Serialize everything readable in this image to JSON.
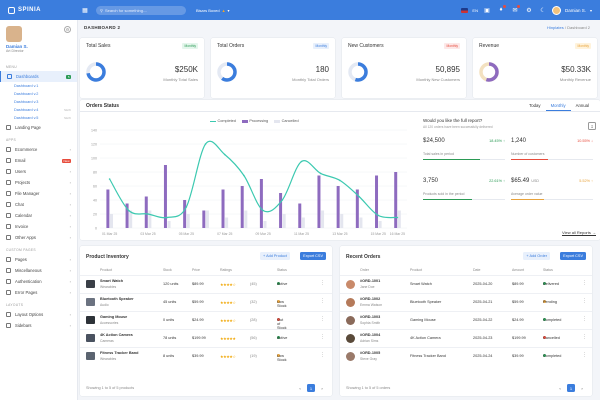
{
  "brand": {
    "name": "SPINIA"
  },
  "topbar": {
    "search_placeholder": "Search for something....",
    "user_dropdown": "Bisars Boxed",
    "lang": "EN",
    "user_name": "Damian S."
  },
  "sidebar": {
    "user": {
      "name": "Damian S.",
      "role": "Art Director"
    },
    "sections": {
      "menu": "MENU",
      "apps": "APPS",
      "custom_pages": "CUSTOM PAGES",
      "layouts": "LAYOUTS"
    },
    "dashboards_label": "Dashboards",
    "dashboards_badge": "5",
    "dashboard_subs": [
      {
        "label": "Dashboard v.1",
        "tag": ""
      },
      {
        "label": "Dashboard v.2",
        "tag": ""
      },
      {
        "label": "Dashboard v.3",
        "tag": ""
      },
      {
        "label": "Dashboard v.4",
        "tag": "NEW"
      },
      {
        "label": "Dashboard v.5",
        "tag": "NEW"
      }
    ],
    "landing": "Landing Page",
    "apps": [
      {
        "label": "Ecommerce",
        "badge": ""
      },
      {
        "label": "Email",
        "badge": "New"
      },
      {
        "label": "Users",
        "badge": ""
      },
      {
        "label": "Projects",
        "badge": ""
      },
      {
        "label": "File Manager",
        "badge": ""
      },
      {
        "label": "Chat",
        "badge": ""
      },
      {
        "label": "Calendar",
        "badge": ""
      },
      {
        "label": "Invoice",
        "badge": ""
      },
      {
        "label": "Other Apps",
        "badge": ""
      }
    ],
    "custom": [
      "Pages",
      "Miscellaneous",
      "Authentication",
      "Error Pages"
    ],
    "layouts": [
      "Layout Options",
      "Sidebars"
    ]
  },
  "page": {
    "title": "DASHBOARD 2",
    "breadcrumb_root": "Hinplates",
    "breadcrumb_current": "Dashboard 2"
  },
  "stats": [
    {
      "title": "Total Sales",
      "tag": "Monthly",
      "value": "$250K",
      "sub": "Monthly Total Sales",
      "color": "#3b7ddd",
      "tag_bg": "#e4f6ec",
      "tag_fg": "#2b9a55",
      "pct": 0.72,
      "track": "#e4e9f3"
    },
    {
      "title": "Total Orders",
      "tag": "Monthly",
      "value": "180",
      "sub": "Monthly Total Orders",
      "color": "#3b7ddd",
      "tag_bg": "#e8f0fc",
      "tag_fg": "#3b7ddd",
      "pct": 0.6,
      "track": "#e4e9f3"
    },
    {
      "title": "New Customers",
      "tag": "Monthly",
      "value": "50,895",
      "sub": "Monthly New Customers",
      "color": "#3b7ddd",
      "tag_bg": "#fde8e8",
      "tag_fg": "#e74c3c",
      "pct": 0.55,
      "track": "#e4e9f3"
    },
    {
      "title": "Revenue",
      "tag": "Monthly",
      "value": "$50.33K",
      "sub": "Monthly Revenue",
      "color": "#8e6bbf",
      "tag_bg": "#fff3dc",
      "tag_fg": "#e8a33c",
      "pct": 0.55,
      "track": "#f3e1c0"
    }
  ],
  "orders_status": {
    "title": "Orders Status",
    "tabs": [
      "Today",
      "Monthly",
      "Annual"
    ],
    "active_tab": "Monthly",
    "report_question": "Would you like the full report?",
    "report_sub": "All 120 orders have been successfully delivered",
    "metrics": [
      {
        "value": "$24,500",
        "pct": "18.45% ↑",
        "label": "Total sales in period",
        "color": "#2b9a55",
        "fill": 0.7
      },
      {
        "value": "1,240",
        "pct": "10.55% ↓",
        "label": "Number of customers",
        "color": "#e74c3c",
        "fill": 0.45
      },
      {
        "value": "3,750",
        "pct": "22.61% ↑",
        "label": "Products sold in the period",
        "color": "#2b9a55",
        "fill": 0.6
      },
      {
        "value": "$65.49",
        "unit": "USD",
        "pct": "5.52% ↑",
        "label": "Average order value",
        "color": "#e8a33c",
        "fill": 0.4
      }
    ],
    "view_all": "View all Reports →"
  },
  "chart_data": {
    "type": "bar",
    "series": [
      {
        "name": "Completed",
        "type": "line",
        "color": "#3cc9b0",
        "values": [
          70,
          25,
          20,
          15,
          30,
          120,
          105,
          75,
          25,
          40,
          95,
          78,
          68,
          45,
          18,
          15
        ]
      },
      {
        "name": "Processing",
        "type": "bar",
        "color": "#8e6bbf",
        "values": [
          55,
          35,
          45,
          90,
          40,
          25,
          55,
          60,
          70,
          50,
          35,
          75,
          60,
          55,
          75,
          80
        ]
      },
      {
        "name": "Cancelled",
        "type": "bar",
        "color": "#e4e6ef",
        "values": [
          20,
          25,
          25,
          10,
          20,
          25,
          15,
          25,
          10,
          20,
          15,
          25,
          20,
          15,
          10,
          25
        ]
      }
    ],
    "categories": [
      "01 Mar 25",
      "02 Mar 25",
      "03 Mar 25",
      "04 Mar 25",
      "05 Mar 25",
      "06 Mar 25",
      "07 Mar 25",
      "08 Mar 25",
      "09 Mar 25",
      "10 Mar 25",
      "11 Mar 25",
      "12 Mar 25",
      "13 Mar 25",
      "14 Mar 25",
      "15 Mar 25",
      "16 Mar 25"
    ],
    "tick_labels": [
      "01 Mar 25",
      "03 Mar 25",
      "05 Mar 25",
      "07 Mar 25",
      "09 Mar 25",
      "11 Mar 25",
      "13 Mar 25",
      "15 Mar 25",
      "16 Mar 25"
    ],
    "tick_indices": [
      0,
      2,
      4,
      6,
      8,
      10,
      12,
      14,
      15
    ],
    "yticks": [
      0,
      20,
      40,
      60,
      80,
      100,
      120,
      140
    ],
    "ylim": [
      0,
      140
    ],
    "legend_position": "top-center",
    "grid": true
  },
  "inventory": {
    "title": "Product Inventory",
    "add": "+ Add Product",
    "export": "Export CSV",
    "headers": [
      "Product",
      "Stock",
      "Price",
      "Ratings",
      "Status"
    ],
    "rows": [
      {
        "name": "Smart Watch",
        "cat": "Wearables",
        "stock": "120 units",
        "price": "$89.99",
        "stars": "★★★★☆",
        "count": "(45)",
        "status": "Active",
        "status_color": "#2b9a55",
        "thumb": "#3a3f47"
      },
      {
        "name": "Bluetooth Speaker",
        "cat": "Audio",
        "stock": "45 units",
        "price": "$59.99",
        "stars": "★★★★☆",
        "count": "(32)",
        "status": "Low Stock",
        "status_color": "#e8a33c",
        "thumb": "#6b7280"
      },
      {
        "name": "Gaming Mouse",
        "cat": "Accessories",
        "stock": "0 units",
        "price": "$24.99",
        "stars": "★★★★☆",
        "count": "(28)",
        "status": "Out of Stock",
        "status_color": "#e74c3c",
        "thumb": "#2d3238"
      },
      {
        "name": "4K Action Camera",
        "cat": "Cameras",
        "stock": "78 units",
        "price": "$199.99",
        "stars": "★★★★★",
        "count": "(56)",
        "status": "Active",
        "status_color": "#2b9a55",
        "thumb": "#4a5260"
      },
      {
        "name": "Fitness Tracker Band",
        "cat": "Wearables",
        "stock": "8 units",
        "price": "$39.99",
        "stars": "★★★★☆",
        "count": "(19)",
        "status": "Low Stock",
        "status_color": "#e8a33c",
        "thumb": "#5b6470"
      }
    ],
    "footer": "Showing 1 to 5 of 5 products",
    "page": "1"
  },
  "orders": {
    "title": "Recent Orders",
    "add": "+ Add Order",
    "export": "Export CSV",
    "headers": [
      "Order",
      "Product",
      "Date",
      "Amount",
      "Status"
    ],
    "rows": [
      {
        "id": "#ORD-1001",
        "customer": "Jane Doe",
        "product": "Smart Watch",
        "date": "2025-04-20",
        "amount": "$89.99",
        "status": "Delivered",
        "status_color": "#2b9a55",
        "avatar": "#c98a6a"
      },
      {
        "id": "#ORD-1002",
        "customer": "Emma Watson",
        "product": "Bluetooth Speaker",
        "date": "2025-04-21",
        "amount": "$59.99",
        "status": "Pending",
        "status_color": "#e8a33c",
        "avatar": "#b57a5a"
      },
      {
        "id": "#ORD-1003",
        "customer": "Sophia Smith",
        "product": "Gaming Mouse",
        "date": "2025-04-22",
        "amount": "$24.99",
        "status": "Completed",
        "status_color": "#2b9a55",
        "avatar": "#8a6a5a"
      },
      {
        "id": "#ORD-1004",
        "customer": "Adrian Sims",
        "product": "4K Action Camera",
        "date": "2025-04-23",
        "amount": "$199.99",
        "status": "Cancelled",
        "status_color": "#e74c3c",
        "avatar": "#5a4a3a"
      },
      {
        "id": "#ORD-1005",
        "customer": "Steve Gray",
        "product": "Fitness Tracker Band",
        "date": "2025-04-24",
        "amount": "$39.99",
        "status": "Completed",
        "status_color": "#2b9a55",
        "avatar": "#9a7a6a"
      }
    ],
    "footer": "Showing 1 to 5 of 5 orders",
    "page": "1"
  }
}
